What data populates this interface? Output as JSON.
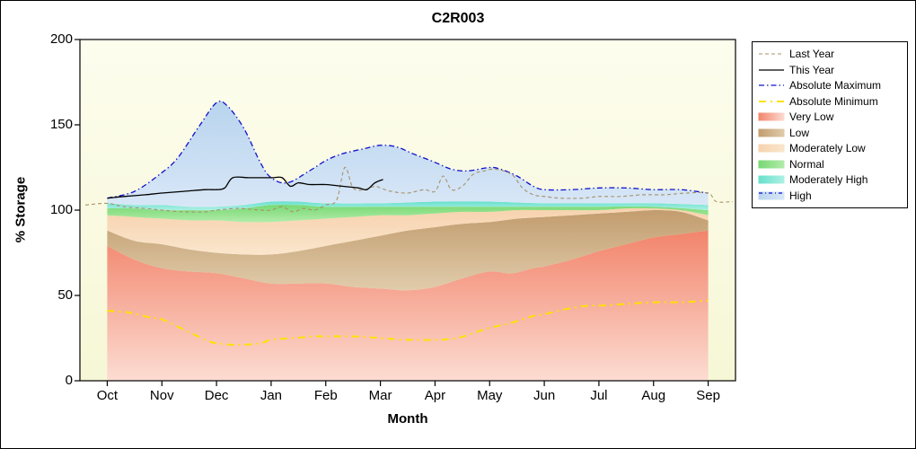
{
  "chart_data": {
    "type": "area",
    "title": "C2R003",
    "xlabel": "Month",
    "ylabel": "% Storage",
    "months": [
      "Oct",
      "Nov",
      "Dec",
      "Jan",
      "Feb",
      "Mar",
      "Apr",
      "May",
      "Jun",
      "Jul",
      "Aug",
      "Sep"
    ],
    "ylim": [
      0,
      200
    ],
    "yticks": [
      0,
      50,
      100,
      150,
      200
    ],
    "legend_position": "right",
    "grid": false,
    "plot_bg_top": "#fdfdee",
    "plot_bg_bottom": "#f6f7d6",
    "bands": [
      {
        "label": "Very Low",
        "c1": "#f2846b",
        "c2": "#fcdcd2",
        "bottom": [
          [
            0,
            0
          ],
          [
            11,
            0
          ]
        ],
        "top": [
          [
            0,
            79
          ],
          [
            0.5,
            71
          ],
          [
            1,
            66
          ],
          [
            1.5,
            64
          ],
          [
            2,
            63
          ],
          [
            2.5,
            60
          ],
          [
            3,
            57
          ],
          [
            3.5,
            57
          ],
          [
            4,
            57
          ],
          [
            4.5,
            55
          ],
          [
            5,
            54
          ],
          [
            5.5,
            53
          ],
          [
            6,
            55
          ],
          [
            6.5,
            60
          ],
          [
            7,
            64
          ],
          [
            7.4,
            63
          ],
          [
            7.8,
            66
          ],
          [
            8,
            67
          ],
          [
            8.5,
            71
          ],
          [
            9,
            76
          ],
          [
            9.5,
            80
          ],
          [
            10,
            84
          ],
          [
            10.5,
            86
          ],
          [
            11,
            88
          ]
        ]
      },
      {
        "label": "Low",
        "c1": "#c29c6e",
        "c2": "#e0ccab",
        "top": [
          [
            0,
            88
          ],
          [
            0.5,
            82
          ],
          [
            1,
            80
          ],
          [
            1.5,
            77
          ],
          [
            2,
            75
          ],
          [
            2.5,
            74
          ],
          [
            3,
            74
          ],
          [
            3.5,
            76
          ],
          [
            4,
            79
          ],
          [
            4.5,
            82
          ],
          [
            5,
            85
          ],
          [
            5.5,
            88
          ],
          [
            6,
            90
          ],
          [
            6.5,
            92
          ],
          [
            7,
            93
          ],
          [
            7.5,
            95
          ],
          [
            8,
            96
          ],
          [
            8.5,
            97
          ],
          [
            9,
            98
          ],
          [
            9.5,
            99
          ],
          [
            10,
            100
          ],
          [
            10.5,
            99
          ],
          [
            11,
            94
          ]
        ]
      },
      {
        "label": "Moderately Low",
        "c1": "#f7d2ae",
        "c2": "#fae6cd",
        "top": [
          [
            0,
            97
          ],
          [
            0.5,
            96
          ],
          [
            1,
            95
          ],
          [
            1.5,
            94
          ],
          [
            2,
            94
          ],
          [
            2.5,
            93
          ],
          [
            3,
            93
          ],
          [
            3.5,
            94
          ],
          [
            4,
            95
          ],
          [
            4.5,
            96
          ],
          [
            5,
            97
          ],
          [
            5.5,
            97
          ],
          [
            6,
            98
          ],
          [
            6.5,
            99
          ],
          [
            7,
            99
          ],
          [
            7.5,
            100
          ],
          [
            8,
            100
          ],
          [
            8.5,
            100
          ],
          [
            9,
            100
          ],
          [
            9.5,
            101
          ],
          [
            10,
            101
          ],
          [
            10.5,
            100
          ],
          [
            11,
            97
          ]
        ]
      },
      {
        "label": "Normal",
        "c1": "#77d873",
        "c2": "#b2ecaa",
        "top": [
          [
            0,
            101
          ],
          [
            0.5,
            101
          ],
          [
            1,
            100
          ],
          [
            1.5,
            100
          ],
          [
            2,
            100
          ],
          [
            2.5,
            101
          ],
          [
            3,
            103
          ],
          [
            3.5,
            103
          ],
          [
            4,
            102
          ],
          [
            5,
            102
          ],
          [
            6,
            102
          ],
          [
            7,
            102
          ],
          [
            8,
            102
          ],
          [
            9,
            102
          ],
          [
            10,
            102
          ],
          [
            11,
            100
          ]
        ]
      },
      {
        "label": "Moderately High",
        "c1": "#66e0cc",
        "c2": "#aef0e4",
        "top": [
          [
            0,
            104
          ],
          [
            0.5,
            103
          ],
          [
            1,
            103
          ],
          [
            1.5,
            102
          ],
          [
            2,
            102
          ],
          [
            2.5,
            103
          ],
          [
            3,
            105
          ],
          [
            3.5,
            105
          ],
          [
            4,
            104
          ],
          [
            5,
            104
          ],
          [
            6,
            105
          ],
          [
            7,
            105
          ],
          [
            8,
            104
          ],
          [
            9,
            104
          ],
          [
            10,
            104
          ],
          [
            11,
            103
          ]
        ]
      },
      {
        "label": "High",
        "c1": "#b8d4ee",
        "c2": "#d8e7f7",
        "top_ref": "Absolute Maximum"
      }
    ],
    "lines": [
      {
        "label": "Absolute Maximum",
        "color": "#1111cc",
        "dash": "6 3 1.5 3",
        "width": 1.3,
        "points": [
          [
            0,
            107
          ],
          [
            0.5,
            111
          ],
          [
            1,
            122
          ],
          [
            1.3,
            131
          ],
          [
            1.7,
            150
          ],
          [
            2,
            163
          ],
          [
            2.2,
            161
          ],
          [
            2.5,
            148
          ],
          [
            2.8,
            128
          ],
          [
            3,
            119
          ],
          [
            3.3,
            116
          ],
          [
            3.7,
            123
          ],
          [
            4,
            129
          ],
          [
            4.3,
            133
          ],
          [
            4.7,
            136
          ],
          [
            5,
            138
          ],
          [
            5.3,
            137
          ],
          [
            5.6,
            133
          ],
          [
            6,
            128
          ],
          [
            6.3,
            124
          ],
          [
            6.6,
            123
          ],
          [
            7,
            125
          ],
          [
            7.2,
            124
          ],
          [
            7.5,
            120
          ],
          [
            7.8,
            114
          ],
          [
            8,
            112
          ],
          [
            8.5,
            112
          ],
          [
            9,
            113
          ],
          [
            9.5,
            113
          ],
          [
            10,
            112
          ],
          [
            10.5,
            112
          ],
          [
            11,
            110
          ]
        ]
      },
      {
        "label": "Absolute Minimum",
        "color": "#ffe100",
        "dash": "8 5 2 5",
        "width": 2,
        "points": [
          [
            0,
            41
          ],
          [
            0.4,
            40
          ],
          [
            0.8,
            37
          ],
          [
            1,
            36
          ],
          [
            1.4,
            30
          ],
          [
            1.8,
            24
          ],
          [
            2,
            22
          ],
          [
            2.4,
            21
          ],
          [
            2.8,
            22
          ],
          [
            3,
            24
          ],
          [
            3.4,
            25
          ],
          [
            3.8,
            26
          ],
          [
            4,
            26
          ],
          [
            4.5,
            26
          ],
          [
            5,
            25
          ],
          [
            5.5,
            24
          ],
          [
            6,
            24
          ],
          [
            6.4,
            25
          ],
          [
            6.8,
            29
          ],
          [
            7,
            31
          ],
          [
            7.4,
            34
          ],
          [
            7.8,
            38
          ],
          [
            8,
            39
          ],
          [
            8.4,
            42
          ],
          [
            8.8,
            44
          ],
          [
            9,
            44
          ],
          [
            9.5,
            45
          ],
          [
            10,
            46
          ],
          [
            10.5,
            46
          ],
          [
            11,
            47
          ]
        ]
      },
      {
        "label": "Last Year",
        "color": "#a8906a",
        "dash": "4 3",
        "width": 1.1,
        "points": [
          [
            -0.4,
            103
          ],
          [
            0,
            104
          ],
          [
            0.3,
            102
          ],
          [
            0.7,
            101
          ],
          [
            1,
            100
          ],
          [
            1.4,
            99
          ],
          [
            1.8,
            99
          ],
          [
            2,
            100
          ],
          [
            2.4,
            101
          ],
          [
            2.8,
            100
          ],
          [
            3,
            100
          ],
          [
            3.2,
            102
          ],
          [
            3.4,
            99
          ],
          [
            3.6,
            101
          ],
          [
            3.8,
            100
          ],
          [
            4,
            103
          ],
          [
            4.2,
            106
          ],
          [
            4.35,
            125
          ],
          [
            4.5,
            113
          ],
          [
            4.7,
            112
          ],
          [
            4.9,
            114
          ],
          [
            5,
            113
          ],
          [
            5.2,
            111
          ],
          [
            5.5,
            110
          ],
          [
            5.8,
            112
          ],
          [
            6,
            111
          ],
          [
            6.15,
            120
          ],
          [
            6.3,
            112
          ],
          [
            6.5,
            114
          ],
          [
            6.7,
            121
          ],
          [
            6.9,
            123
          ],
          [
            7.1,
            124
          ],
          [
            7.4,
            121
          ],
          [
            7.6,
            113
          ],
          [
            7.8,
            109
          ],
          [
            8,
            108
          ],
          [
            8.3,
            107
          ],
          [
            8.7,
            107
          ],
          [
            9,
            108
          ],
          [
            9.4,
            108
          ],
          [
            9.8,
            109
          ],
          [
            10.2,
            109
          ],
          [
            10.6,
            110
          ],
          [
            11,
            110
          ],
          [
            11.15,
            105
          ],
          [
            11.45,
            105
          ]
        ]
      },
      {
        "label": "This Year",
        "color": "#000000",
        "dash": "",
        "width": 1.3,
        "points": [
          [
            0,
            107
          ],
          [
            0.3,
            108
          ],
          [
            0.7,
            109
          ],
          [
            1,
            110
          ],
          [
            1.4,
            111
          ],
          [
            1.8,
            112
          ],
          [
            2,
            112
          ],
          [
            2.15,
            113
          ],
          [
            2.3,
            119
          ],
          [
            2.6,
            119
          ],
          [
            3,
            119
          ],
          [
            3.2,
            119
          ],
          [
            3.35,
            114
          ],
          [
            3.5,
            116
          ],
          [
            3.7,
            115
          ],
          [
            4,
            115
          ],
          [
            4.3,
            114
          ],
          [
            4.6,
            113
          ],
          [
            4.75,
            112
          ],
          [
            4.9,
            116
          ],
          [
            5.05,
            118
          ]
        ]
      }
    ],
    "legend": [
      {
        "label": "Last Year",
        "kind": "line",
        "color": "#a8906a",
        "dash": "4 3",
        "width": 1.1
      },
      {
        "label": "This Year",
        "kind": "line",
        "color": "#000000",
        "dash": "",
        "width": 1.3
      },
      {
        "label": "Absolute Maximum",
        "kind": "line",
        "color": "#1111cc",
        "dash": "6 3 1.5 3",
        "width": 1.3
      },
      {
        "label": "Absolute Minimum",
        "kind": "line",
        "color": "#ffe100",
        "dash": "8 5 2 5",
        "width": 2
      },
      {
        "label": "Very Low",
        "kind": "area",
        "c1": "#f2846b",
        "c2": "#fcdcd2"
      },
      {
        "label": "Low",
        "kind": "area",
        "c1": "#c29c6e",
        "c2": "#e0ccab"
      },
      {
        "label": "Moderately Low",
        "kind": "area",
        "c1": "#f7d2ae",
        "c2": "#fae6cd"
      },
      {
        "label": "Normal",
        "kind": "area",
        "c1": "#77d873",
        "c2": "#b2ecaa"
      },
      {
        "label": "Moderately High",
        "kind": "area",
        "c1": "#66e0cc",
        "c2": "#aef0e4"
      },
      {
        "label": "High",
        "kind": "area",
        "c1": "#b8d4ee",
        "c2": "#d8e7f7",
        "line_color": "#1111cc",
        "line_dash": "4 3 1 3"
      }
    ]
  }
}
